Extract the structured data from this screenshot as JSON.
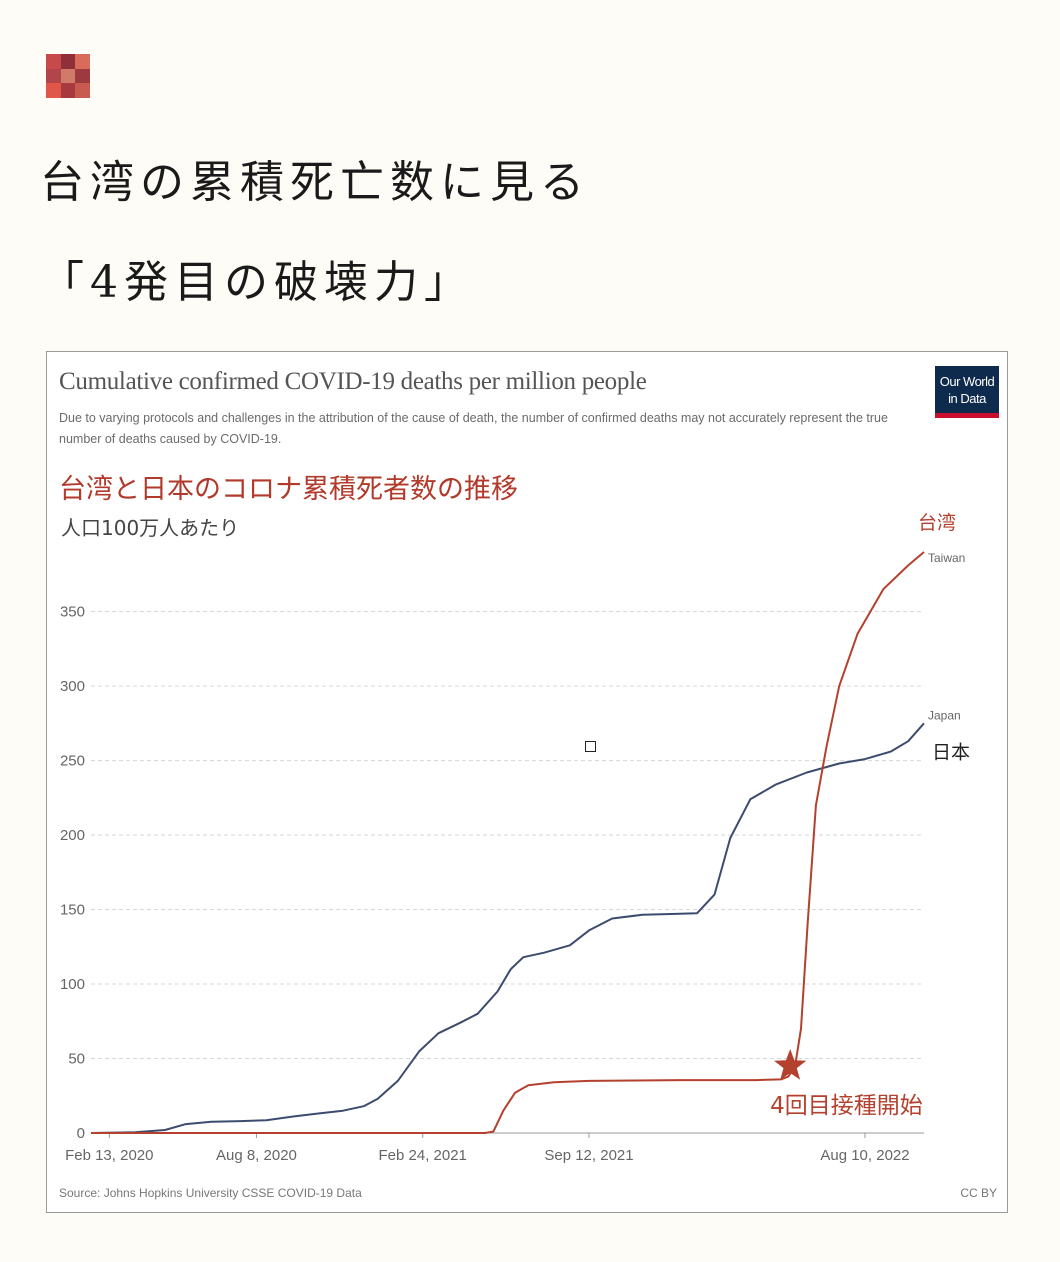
{
  "header": {
    "logo_colors": [
      "#c74a4a",
      "#8f2f3a",
      "#d96b5b",
      "#b2454a",
      "#d27a6a",
      "#9c3a40",
      "#e0574a",
      "#a83a3f",
      "#c95a50"
    ],
    "headline_line1": "台湾の累積死亡数に見る",
    "headline_line2": "「4発目の破壊力」"
  },
  "card": {
    "owid_logo_line1": "Our World",
    "owid_logo_line2": "in Data",
    "jp_title": "台湾と日本のコロナ累積死者数の推移",
    "jp_subtitle": "人口100万人あたり",
    "annotation_taiwan": "台湾",
    "annotation_japan": "日本",
    "annotation_booster": "4回目接種開始",
    "source": "Source: Johns Hopkins University CSSE COVID-19 Data",
    "license": "CC BY"
  },
  "chart_data": {
    "type": "line",
    "title": "Cumulative confirmed COVID-19 deaths per million people",
    "subtitle": "Due to varying protocols and challenges in the attribution of the cause of death, the number of confirmed deaths may not accurately represent the true number of deaths caused by COVID-19.",
    "xlabel": "",
    "ylabel": "",
    "x_ticks": [
      "Feb 13, 2020",
      "Aug 8, 2020",
      "Feb 24, 2021",
      "Sep 12, 2021",
      "Aug 10, 2022"
    ],
    "x_tick_dates": [
      "2020-02-13",
      "2020-08-08",
      "2021-02-24",
      "2021-09-12",
      "2022-08-10"
    ],
    "y_ticks": [
      0,
      50,
      100,
      150,
      200,
      250,
      300,
      350
    ],
    "ylim": [
      0,
      390
    ],
    "xlim": [
      "2020-01-22",
      "2022-10-20"
    ],
    "grid": true,
    "series": [
      {
        "name": "Japan",
        "color": "#3c4c6e",
        "points": [
          [
            "2020-01-22",
            0
          ],
          [
            "2020-03-15",
            0.5
          ],
          [
            "2020-04-20",
            2
          ],
          [
            "2020-05-15",
            6
          ],
          [
            "2020-06-15",
            7.5
          ],
          [
            "2020-07-20",
            8
          ],
          [
            "2020-08-20",
            8.5
          ],
          [
            "2020-09-20",
            11
          ],
          [
            "2020-10-20",
            13
          ],
          [
            "2020-11-20",
            15
          ],
          [
            "2020-12-15",
            18
          ],
          [
            "2021-01-01",
            23
          ],
          [
            "2021-01-25",
            35
          ],
          [
            "2021-02-20",
            55
          ],
          [
            "2021-03-15",
            67
          ],
          [
            "2021-04-10",
            74
          ],
          [
            "2021-05-01",
            80
          ],
          [
            "2021-05-25",
            95
          ],
          [
            "2021-06-10",
            110
          ],
          [
            "2021-06-25",
            118
          ],
          [
            "2021-07-20",
            121
          ],
          [
            "2021-08-20",
            126
          ],
          [
            "2021-09-12",
            136
          ],
          [
            "2021-10-10",
            144
          ],
          [
            "2021-11-15",
            146.5
          ],
          [
            "2021-12-20",
            147
          ],
          [
            "2022-01-20",
            147.5
          ],
          [
            "2022-02-10",
            160
          ],
          [
            "2022-03-01",
            198
          ],
          [
            "2022-03-25",
            224
          ],
          [
            "2022-04-25",
            234
          ],
          [
            "2022-06-01",
            242
          ],
          [
            "2022-07-10",
            248
          ],
          [
            "2022-08-10",
            251
          ],
          [
            "2022-09-10",
            256
          ],
          [
            "2022-10-01",
            263
          ],
          [
            "2022-10-20",
            275
          ]
        ]
      },
      {
        "name": "Taiwan",
        "color": "#b4402e",
        "points": [
          [
            "2020-01-22",
            0
          ],
          [
            "2021-05-10",
            0
          ],
          [
            "2021-05-20",
            1
          ],
          [
            "2021-06-01",
            15
          ],
          [
            "2021-06-15",
            27
          ],
          [
            "2021-07-01",
            32
          ],
          [
            "2021-08-01",
            34
          ],
          [
            "2021-09-12",
            35
          ],
          [
            "2022-01-01",
            35.5
          ],
          [
            "2022-04-01",
            35.5
          ],
          [
            "2022-05-01",
            36
          ],
          [
            "2022-05-10",
            38
          ],
          [
            "2022-05-18",
            45
          ],
          [
            "2022-05-25",
            70
          ],
          [
            "2022-06-02",
            140
          ],
          [
            "2022-06-12",
            220
          ],
          [
            "2022-06-25",
            260
          ],
          [
            "2022-07-10",
            300
          ],
          [
            "2022-08-01",
            335
          ],
          [
            "2022-09-01",
            365
          ],
          [
            "2022-10-01",
            381
          ],
          [
            "2022-10-20",
            390
          ]
        ]
      }
    ],
    "annotations": [
      {
        "type": "star",
        "date": "2022-05-12",
        "value": 45,
        "color": "#b4402e",
        "label": "4回目接種開始"
      }
    ]
  }
}
